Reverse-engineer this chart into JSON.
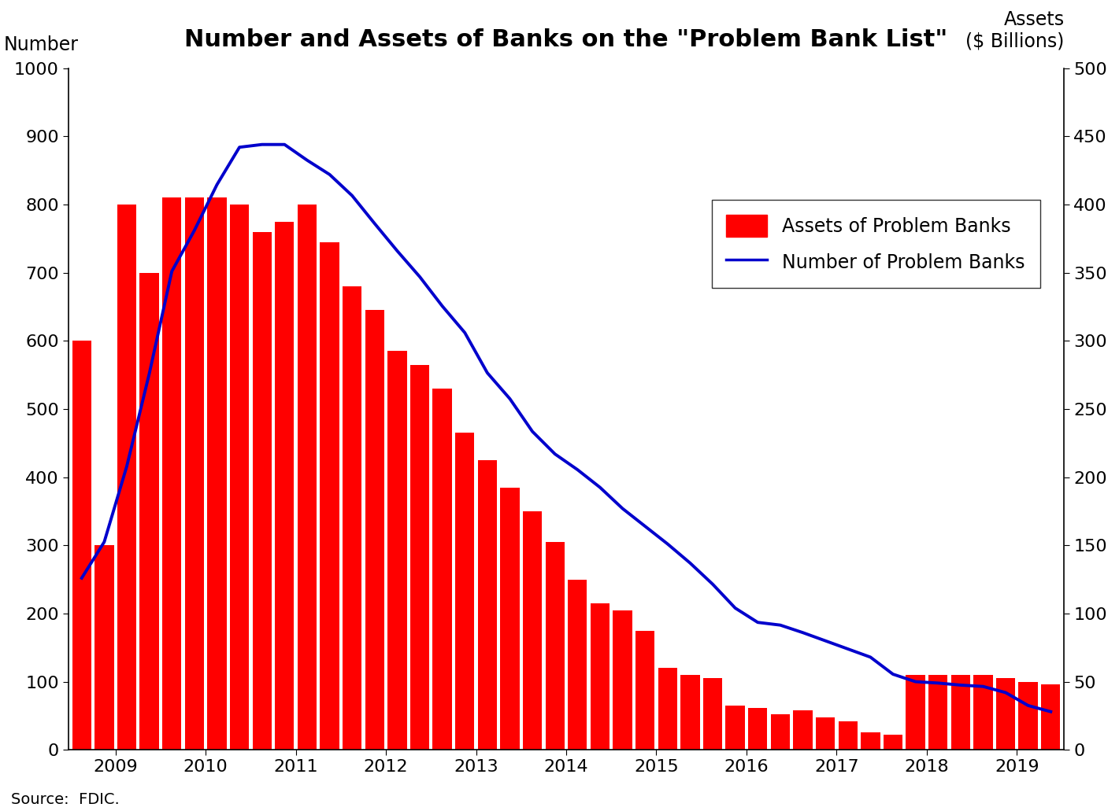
{
  "title": "Number and Assets of Banks on the \"Problem Bank List\"",
  "source": "Source:  FDIC.",
  "bar_color": "#FF0000",
  "line_color": "#0000CC",
  "ylim_left": [
    0,
    1000
  ],
  "ylim_right": [
    0,
    500
  ],
  "yticks_left": [
    0,
    100,
    200,
    300,
    400,
    500,
    600,
    700,
    800,
    900,
    1000
  ],
  "yticks_right": [
    0,
    50,
    100,
    150,
    200,
    250,
    300,
    350,
    400,
    450,
    500
  ],
  "xtick_years": [
    "2009",
    "2010",
    "2011",
    "2012",
    "2013",
    "2014",
    "2015",
    "2016",
    "2017",
    "2018",
    "2019"
  ],
  "title_fontsize": 22,
  "axis_label_fontsize": 17,
  "tick_fontsize": 16,
  "legend_fontsize": 17,
  "source_fontsize": 14,
  "bar_heights_left": [
    600,
    300,
    800,
    700,
    810,
    810,
    810,
    800,
    760,
    775,
    800,
    745,
    680,
    645,
    585,
    565,
    530,
    465,
    425,
    385,
    350,
    305,
    250,
    215,
    205,
    175,
    120,
    110,
    105,
    65,
    62,
    52,
    58,
    48,
    42,
    26,
    22,
    110,
    110,
    110,
    110,
    105,
    100,
    96
  ],
  "num_banks": [
    252,
    305,
    416,
    552,
    702,
    762,
    829,
    884,
    888,
    888,
    865,
    844,
    813,
    772,
    732,
    694,
    651,
    612,
    553,
    515,
    467,
    434,
    411,
    385,
    354,
    328,
    302,
    274,
    243,
    208,
    187,
    183,
    172,
    160,
    148,
    136,
    111,
    100,
    98,
    95,
    93,
    84,
    65,
    56
  ]
}
